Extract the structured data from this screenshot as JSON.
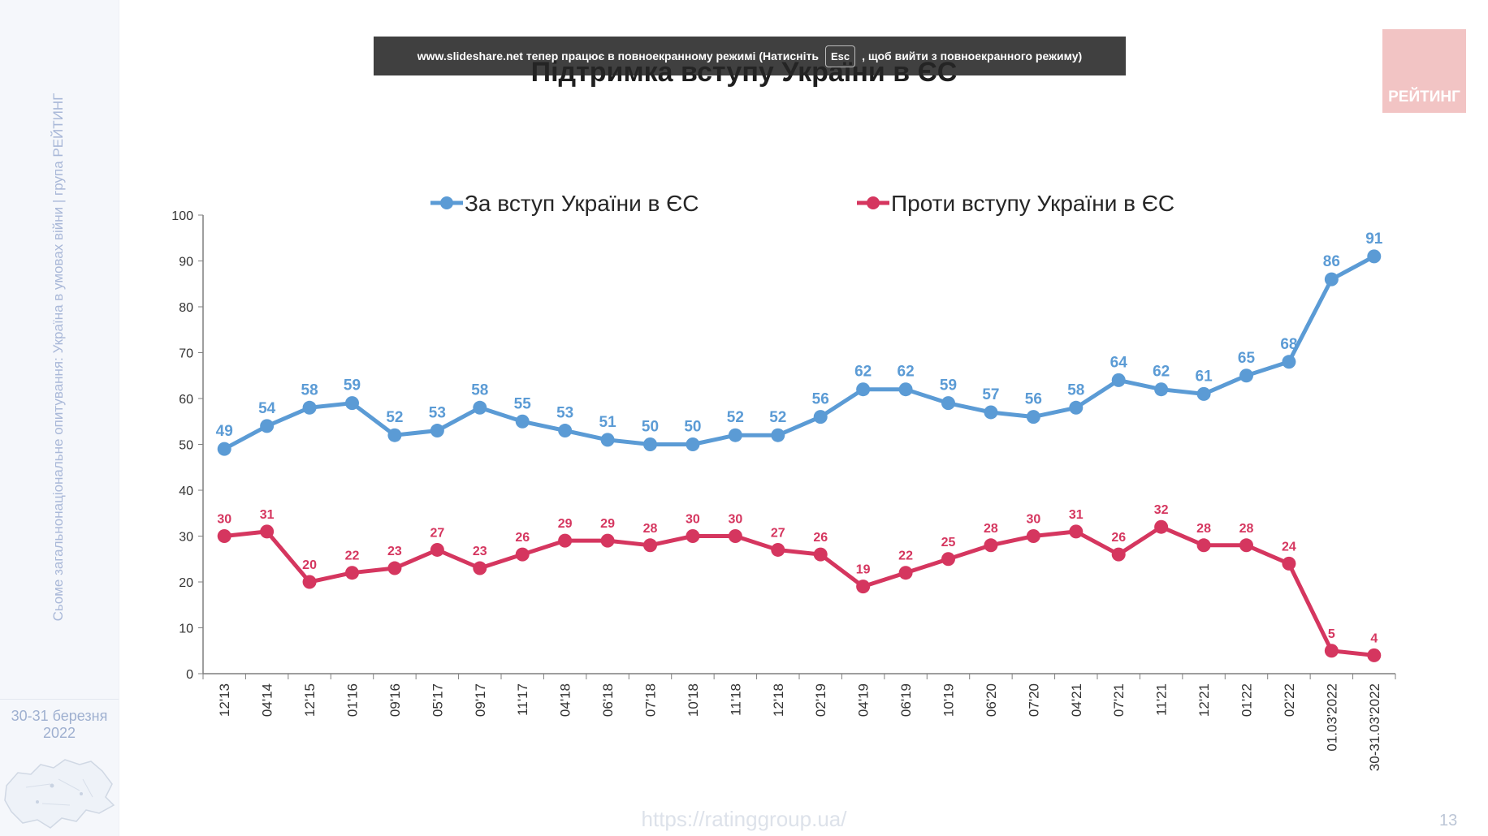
{
  "sidebar": {
    "vertical_text": "Сьоме загальнонаціональне опитування: Україна в умовах війни | група РЕЙТИНГ",
    "date_line1": "30-31 березня",
    "date_line2": "2022"
  },
  "fullscreen_banner": {
    "text_before": "www.slideshare.net тепер працює в повноекранному режимі (Натисніть",
    "key_label": "Esc",
    "text_after": ", щоб вийти з повноекранного режиму)"
  },
  "logo": {
    "text": "РЕЙТИНГ"
  },
  "footer": {
    "url": "https://ratinggroup.ua/",
    "page_number": "13"
  },
  "colors": {
    "for": "#5b9bd5",
    "against": "#d5365f"
  },
  "chart_data": {
    "type": "line",
    "title": "Підтримка вступу України в ЄС",
    "categories": [
      "12'13",
      "04'14",
      "12'15",
      "01'16",
      "09'16",
      "05'17",
      "09'17",
      "11'17",
      "04'18",
      "06'18",
      "07'18",
      "10'18",
      "11'18",
      "12'18",
      "02'19",
      "04'19",
      "06'19",
      "10'19",
      "06'20",
      "07'20",
      "04'21",
      "07'21",
      "11'21",
      "12'21",
      "01'22",
      "02'22",
      "01.03'2022",
      "30-31.03'2022"
    ],
    "series": [
      {
        "name": "За вступ України в ЄС",
        "color": "#5b9bd5",
        "values": [
          49,
          54,
          58,
          59,
          52,
          53,
          58,
          55,
          53,
          51,
          50,
          50,
          52,
          52,
          56,
          62,
          62,
          59,
          57,
          56,
          58,
          64,
          62,
          61,
          65,
          68,
          86,
          91
        ]
      },
      {
        "name": "Проти вступу України в ЄС",
        "color": "#d5365f",
        "values": [
          30,
          31,
          20,
          22,
          23,
          27,
          23,
          26,
          29,
          29,
          28,
          30,
          30,
          27,
          26,
          19,
          22,
          25,
          28,
          30,
          31,
          26,
          32,
          28,
          28,
          24,
          5,
          4
        ]
      }
    ],
    "ylim": [
      0,
      100
    ],
    "yticks": [
      0,
      10,
      20,
      30,
      40,
      50,
      60,
      70,
      80,
      90,
      100
    ],
    "grid": false,
    "legend_position": "top"
  }
}
